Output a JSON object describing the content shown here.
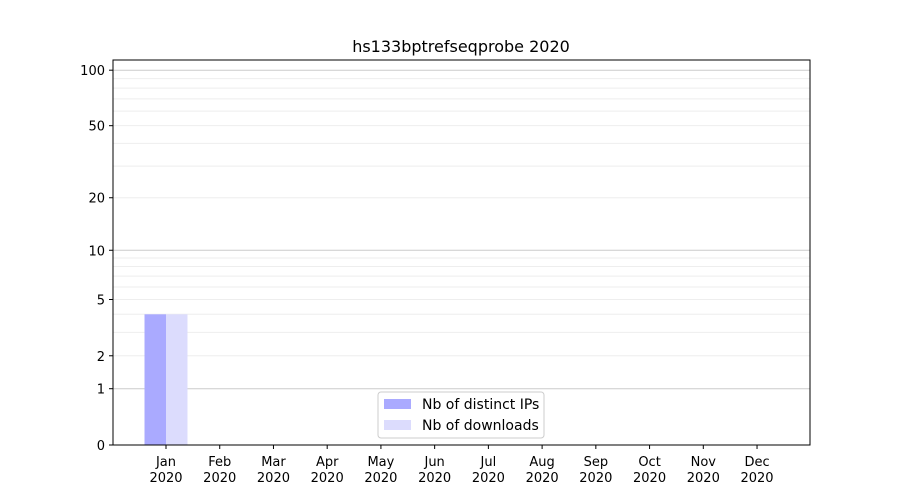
{
  "chart_data": {
    "type": "bar",
    "title": "hs133bptrefseqprobe 2020",
    "xlabel": "",
    "ylabel": "",
    "categories": [
      "Jan\n2020",
      "Feb\n2020",
      "Mar\n2020",
      "Apr\n2020",
      "May\n2020",
      "Jun\n2020",
      "Jul\n2020",
      "Aug\n2020",
      "Sep\n2020",
      "Oct\n2020",
      "Nov\n2020",
      "Dec\n2020"
    ],
    "series": [
      {
        "name": "Nb of distinct IPs",
        "color": "#aaaaff",
        "values": [
          4,
          0,
          0,
          0,
          0,
          0,
          0,
          0,
          0,
          0,
          0,
          0
        ]
      },
      {
        "name": "Nb of downloads",
        "color": "#dcdcfd",
        "values": [
          4,
          0,
          0,
          0,
          0,
          0,
          0,
          0,
          0,
          0,
          0,
          0
        ]
      }
    ],
    "yscale": "log(1+y)",
    "yticks": [
      0,
      1,
      2,
      5,
      10,
      20,
      50,
      100
    ],
    "ylim": [
      0,
      115
    ],
    "grid": true,
    "legend": "lower-center"
  }
}
